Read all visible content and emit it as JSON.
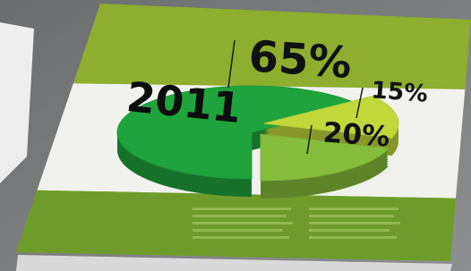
{
  "chart_data": {
    "type": "pie",
    "title": "2011",
    "categories": [
      null,
      null,
      null
    ],
    "values": [
      65,
      15,
      20
    ],
    "value_labels": [
      "65%",
      "15%",
      "20%"
    ],
    "colors": [
      "#1fa33c",
      "#c2d83a",
      "#86bd3c"
    ]
  }
}
